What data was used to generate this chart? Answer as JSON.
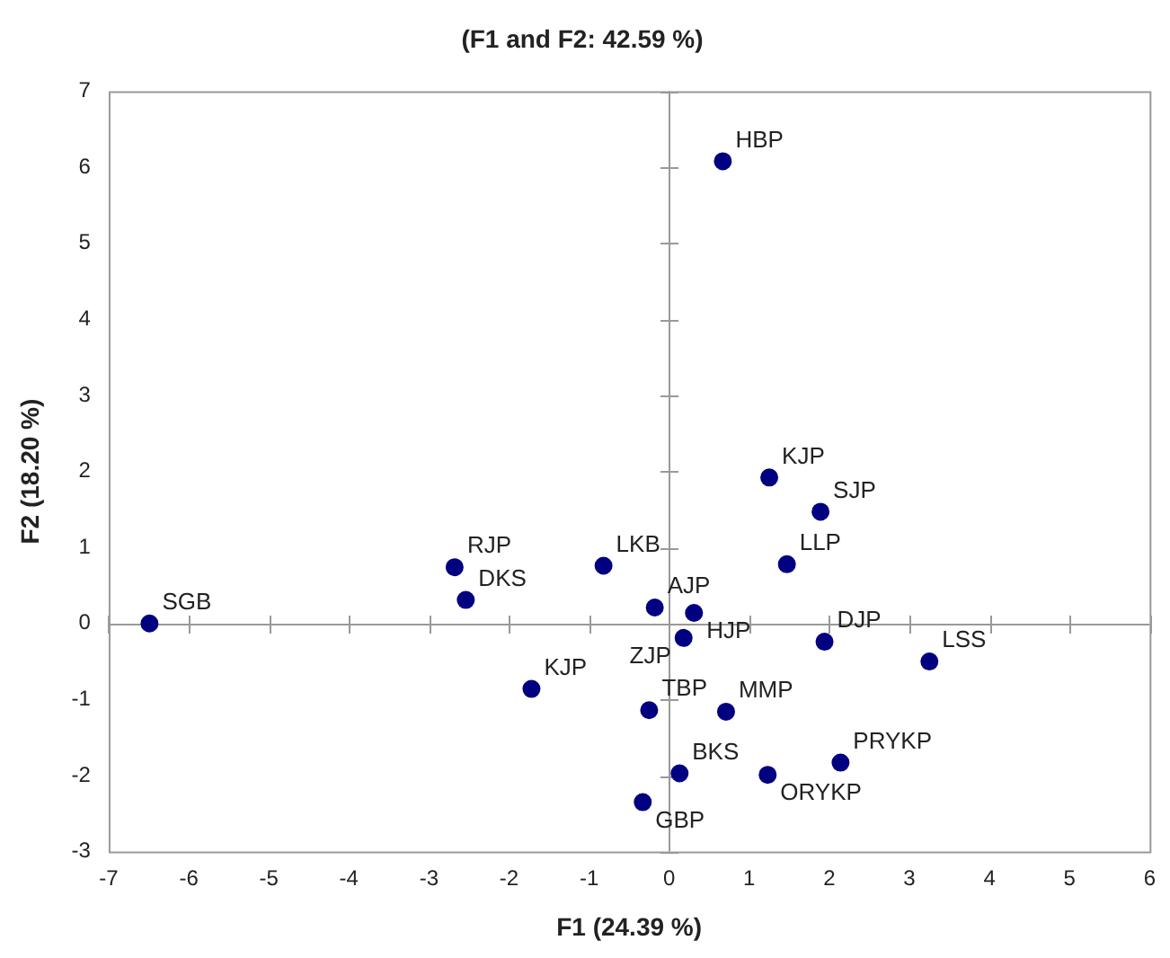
{
  "chart_data": {
    "type": "scatter",
    "title": "(F1 and F2: 42.59 %)",
    "xlabel": "F1 (24.39 %)",
    "ylabel": "F2 (18.20 %)",
    "x": [
      0.67,
      1.25,
      1.89,
      1.47,
      -0.82,
      -0.18,
      0.31,
      0.18,
      1.94,
      3.25,
      -1.72,
      -0.25,
      0.71,
      2.14,
      0.13,
      1.23,
      -0.33,
      -2.68,
      -2.54,
      -6.49
    ],
    "series": [
      {
        "color": "#000080",
        "values": [
          6.08,
          1.92,
          1.47,
          0.78,
          0.76,
          0.21,
          0.14,
          -0.19,
          -0.24,
          -0.5,
          -0.86,
          -1.14,
          -1.16,
          -1.83,
          -1.97,
          -1.99,
          -2.35,
          0.74,
          0.31,
          0
        ]
      }
    ],
    "annotations": [
      {
        "text": "HBP",
        "x": 0.67,
        "y": 6.08
      },
      {
        "text": "KJP",
        "x": 1.25,
        "y": 1.92
      },
      {
        "text": "SJP",
        "x": 1.89,
        "y": 1.47
      },
      {
        "text": "LLP",
        "x": 1.47,
        "y": 0.78
      },
      {
        "text": "LKB",
        "x": -0.82,
        "y": 0.76
      },
      {
        "text": "AJP",
        "x": -0.18,
        "y": 0.21
      },
      {
        "text": "HJP",
        "x": 0.31,
        "y": 0.14
      },
      {
        "text": "ZJP",
        "x": 0.18,
        "y": -0.19
      },
      {
        "text": "DJP",
        "x": 1.94,
        "y": -0.24
      },
      {
        "text": "LSS",
        "x": 3.25,
        "y": -0.5
      },
      {
        "text": "KJP",
        "x": -1.72,
        "y": -0.86
      },
      {
        "text": "TBP",
        "x": -0.25,
        "y": -1.14
      },
      {
        "text": "MMP",
        "x": 0.71,
        "y": -1.16
      },
      {
        "text": "PRYKP",
        "x": 2.14,
        "y": -1.83
      },
      {
        "text": "BKS",
        "x": 0.13,
        "y": -1.97
      },
      {
        "text": "ORYKP",
        "x": 1.23,
        "y": -1.99
      },
      {
        "text": "GBP",
        "x": -0.33,
        "y": -2.35
      },
      {
        "text": "RJP",
        "x": -2.68,
        "y": 0.74
      },
      {
        "text": "DKS",
        "x": -2.54,
        "y": 0.31
      },
      {
        "text": "SGB",
        "x": -6.49,
        "y": 0
      }
    ],
    "xlim": [
      -7,
      6
    ],
    "xticks": [
      -7,
      -6,
      -5,
      -4,
      -3,
      -2,
      -1,
      0,
      1,
      2,
      3,
      4,
      5,
      6
    ],
    "ylim": [
      -3,
      7
    ],
    "yticks": [
      -3,
      -2,
      -1,
      0,
      1,
      2,
      3,
      4,
      5,
      6,
      7
    ],
    "marker": "circle",
    "legend": false
  }
}
